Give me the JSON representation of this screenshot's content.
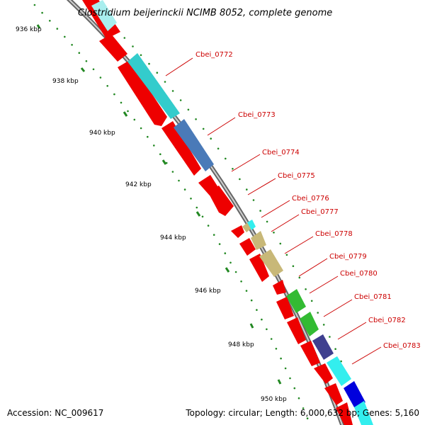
{
  "title": "Clostridium beijerinckii NCIMB 8052, complete genome",
  "accession": "Accession: NC_009617",
  "summary": "Topology: circular; Length: 6,000,632 bp; Genes: 5,160",
  "colors": {
    "red_gene": "#ee0000",
    "cyan_gene": "#33cccc",
    "light_cyan_gene": "#33eeee",
    "steel_gene": "#4a7ab8",
    "khaki_gene": "#c8b878",
    "green_gene": "#33bb33",
    "navy_gene": "#3f3f8f",
    "blue_gene": "#0000dd",
    "label_red": "#cc0000",
    "tick_green": "#228822",
    "backbone": "#888888"
  },
  "kbp_ticks": [
    "936 kbp",
    "938 kbp",
    "940 kbp",
    "942 kbp",
    "944 kbp",
    "946 kbp",
    "948 kbp",
    "950 kbp"
  ],
  "gene_labels": [
    "Cbei_0772",
    "Cbei_0773",
    "Cbei_0774",
    "Cbei_0775",
    "Cbei_0776",
    "Cbei_0777",
    "Cbei_0778",
    "Cbei_0779",
    "Cbei_0780",
    "Cbei_0781",
    "Cbei_0782",
    "Cbei_0783"
  ]
}
